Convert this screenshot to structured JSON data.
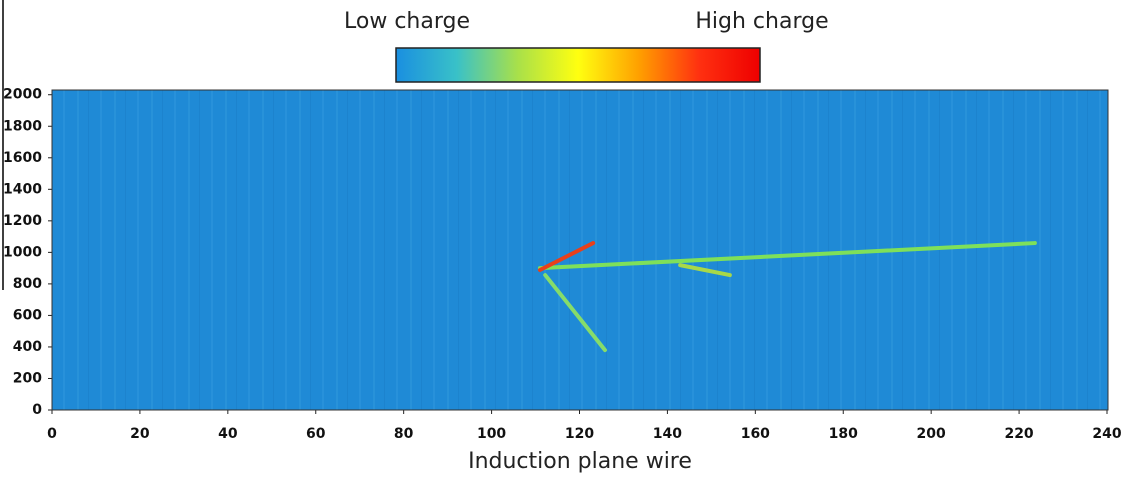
{
  "chart_data": {
    "type": "event-display",
    "colorbar_labels": [
      "Low charge",
      "High charge"
    ],
    "colorbar_colors": [
      "#1a8fe0",
      "#39c1c8",
      "#a8e04a",
      "#ffff10",
      "#ffa000",
      "#ff3010",
      "#ee0000"
    ],
    "background": "#1f8ad6",
    "x_label": "Induction plane wire",
    "xlim": [
      0,
      240
    ],
    "xticks": [
      0,
      20,
      40,
      60,
      80,
      100,
      120,
      140,
      160,
      180,
      200,
      220,
      240
    ],
    "ylim": [
      0,
      2030
    ],
    "yticks": [
      0,
      200,
      400,
      600,
      800,
      1000,
      1200,
      1400,
      1600,
      1800,
      2000
    ],
    "tracks": [
      {
        "x": [
          111,
          223.6
        ],
        "y": [
          900,
          1059
        ],
        "color": "#7ee05a"
      },
      {
        "x": [
          112.2,
          125.8
        ],
        "y": [
          856,
          380
        ],
        "color": "#86dc6a"
      },
      {
        "x": [
          142.9,
          154.2
        ],
        "y": [
          919,
          856
        ],
        "color": "#a8d848"
      },
      {
        "x": [
          111,
          123.1
        ],
        "y": [
          888,
          1059
        ],
        "color": "#e8401a"
      }
    ]
  }
}
